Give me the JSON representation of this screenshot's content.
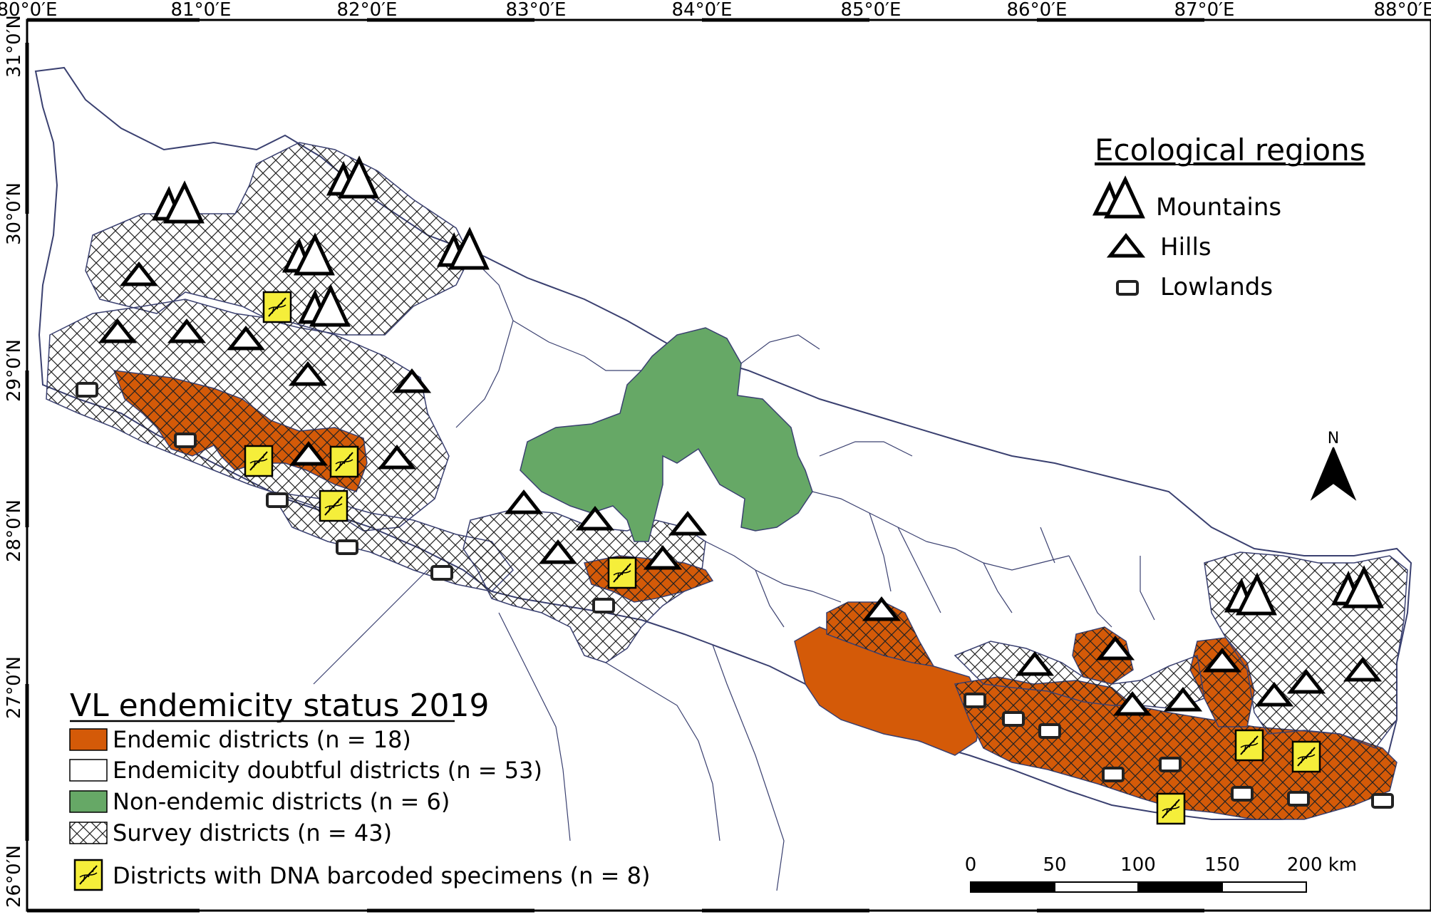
{
  "coords": {
    "top": [
      "80°0′E",
      "81°0′E",
      "82°0′E",
      "83°0′E",
      "84°0′E",
      "85°0′E",
      "86°0′E",
      "87°0′E",
      "88°0′E"
    ],
    "left": [
      "31°0′N",
      "30°0′N",
      "29°0′N",
      "28°0′N",
      "27°0′N",
      "26°0′N"
    ]
  },
  "ecological_legend": {
    "title": "Ecological regions",
    "items": [
      "Mountains",
      "Hills",
      "Lowlands"
    ]
  },
  "vl_legend": {
    "title": "VL endemicity status 2019",
    "items": [
      {
        "label": "Endemic districts (n = 18)",
        "color": "#d45a08"
      },
      {
        "label": "Endemicity doubtful districts (n = 53)",
        "color": "#ffffff"
      },
      {
        "label": "Non-endemic districts (n = 6)",
        "color": "#66a866"
      },
      {
        "label": "Survey districts (n = 43)",
        "color": "hatch"
      },
      {
        "label": "Districts with DNA barcoded specimens (n = 8)",
        "color": "#f5ee3a"
      }
    ]
  },
  "north_label": "N",
  "scalebar": {
    "labels": [
      "0",
      "50",
      "100",
      "150",
      "200 km"
    ]
  }
}
